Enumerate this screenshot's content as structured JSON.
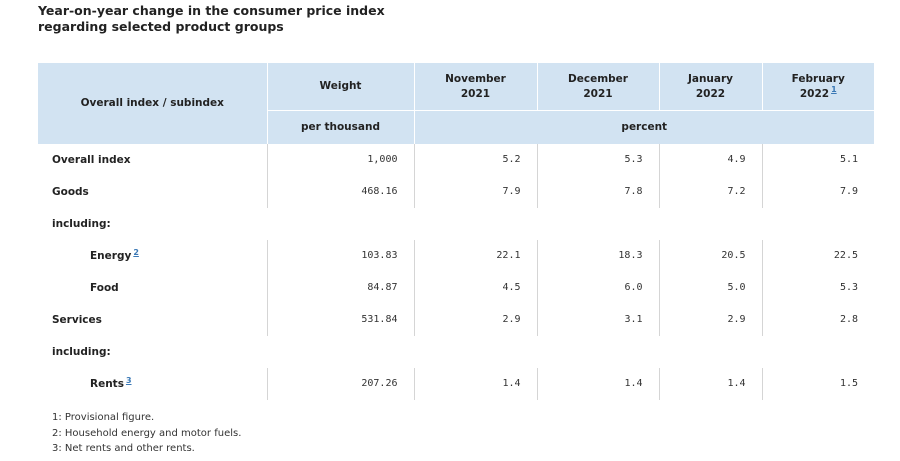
{
  "title": "Year-on-year change in the consumer price index regarding selected product groups",
  "header": {
    "row_label": "Overall index / subindex",
    "weight": "Weight",
    "columns": [
      {
        "line1": "November",
        "line2": "2021",
        "footnote": ""
      },
      {
        "line1": "December",
        "line2": "2021",
        "footnote": ""
      },
      {
        "line1": "January",
        "line2": "2022",
        "footnote": ""
      },
      {
        "line1": "February",
        "line2": "2022",
        "footnote": "1"
      }
    ],
    "weight_unit": "per thousand",
    "value_unit": "percent"
  },
  "rows": [
    {
      "label": "Overall index",
      "footnote": "",
      "weight": "1,000",
      "values": [
        "5.2",
        "5.3",
        "4.9",
        "5.1"
      ]
    },
    {
      "label": "Goods",
      "footnote": "",
      "weight": "468.16",
      "values": [
        "7.9",
        "7.8",
        "7.2",
        "7.9"
      ]
    },
    {
      "label": "including:",
      "footnote": "",
      "weight": "",
      "values": [
        "",
        "",
        "",
        ""
      ]
    },
    {
      "label": "Energy",
      "footnote": "2",
      "weight": "103.83",
      "values": [
        "22.1",
        "18.3",
        "20.5",
        "22.5"
      ]
    },
    {
      "label": "Food",
      "footnote": "",
      "weight": "84.87",
      "values": [
        "4.5",
        "6.0",
        "5.0",
        "5.3"
      ]
    },
    {
      "label": "Services",
      "footnote": "",
      "weight": "531.84",
      "values": [
        "2.9",
        "3.1",
        "2.9",
        "2.8"
      ]
    },
    {
      "label": "including:",
      "footnote": "",
      "weight": "",
      "values": [
        "",
        "",
        "",
        ""
      ]
    },
    {
      "label": "Rents",
      "footnote": "3",
      "weight": "207.26",
      "values": [
        "1.4",
        "1.4",
        "1.4",
        "1.5"
      ]
    }
  ],
  "footnotes": [
    "1: Provisional figure.",
    "2: Household energy and motor fuels.",
    "3: Net rents and other rents."
  ]
}
